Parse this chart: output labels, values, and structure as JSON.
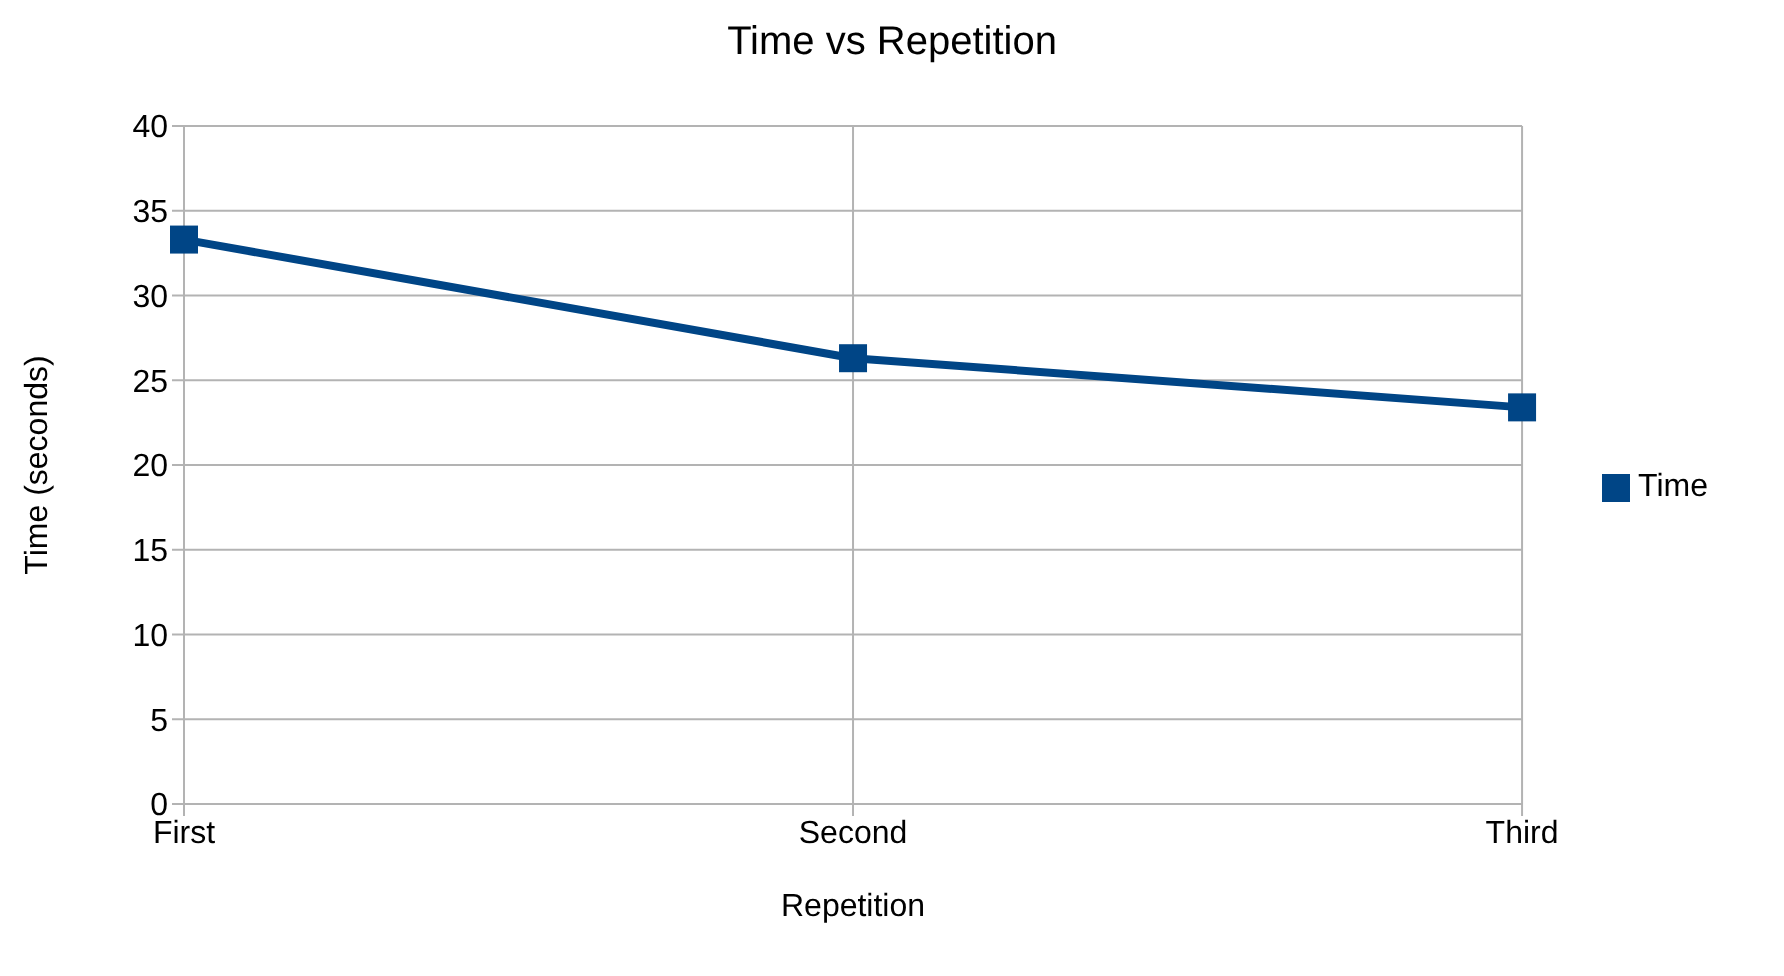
{
  "chart_data": {
    "type": "line",
    "title": "Time vs Repetition",
    "xlabel": "Repetition",
    "ylabel": "Time (seconds)",
    "categories": [
      "First",
      "Second",
      "Third"
    ],
    "series": [
      {
        "name": "Time",
        "color": "#004586",
        "values": [
          33.3,
          26.3,
          23.4
        ]
      }
    ],
    "ylim": [
      0,
      40
    ],
    "yticks": [
      0,
      5,
      10,
      15,
      20,
      25,
      30,
      35,
      40
    ],
    "grid": true,
    "legend": "right",
    "marker": "square",
    "line_style": "solid"
  }
}
